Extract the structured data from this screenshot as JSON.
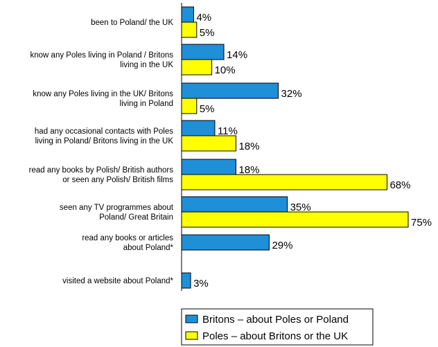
{
  "chart_data": {
    "type": "bar",
    "orientation": "horizontal",
    "categories": [
      [
        "been to Poland/ the UK"
      ],
      [
        "know any Poles living in Poland / Britons",
        "living in the UK"
      ],
      [
        "know any Poles living in the UK/ Britons",
        "living in Poland"
      ],
      [
        "had any occasional contacts with Poles",
        "living in Poland/ Britons living in the UK"
      ],
      [
        "read any books by Polish/ British authors",
        "or seen any Polish/ British films"
      ],
      [
        "seen any TV programmes about",
        "Poland/ Great Britain"
      ],
      [
        "read any books or articles",
        "about Poland*"
      ],
      [
        "visited a website about Poland*"
      ]
    ],
    "series": [
      {
        "name": "Britons – about Poles or Poland",
        "color": "#1f8fd8",
        "values": [
          4,
          14,
          32,
          11,
          18,
          35,
          29,
          3
        ],
        "labels": [
          "4%",
          "14%",
          "32%",
          "11%",
          "18%",
          "35%",
          "29%",
          "3%"
        ]
      },
      {
        "name": "Poles – about Britons or the UK",
        "color": "#ffff00",
        "values": [
          5,
          10,
          5,
          18,
          68,
          75,
          null,
          null
        ],
        "labels": [
          "5%",
          "10%",
          "5%",
          "18%",
          "68%",
          "75%",
          null,
          null
        ]
      }
    ],
    "unit": "%",
    "xlim": [
      0,
      75
    ],
    "grid": false,
    "legend_position": "bottom"
  }
}
